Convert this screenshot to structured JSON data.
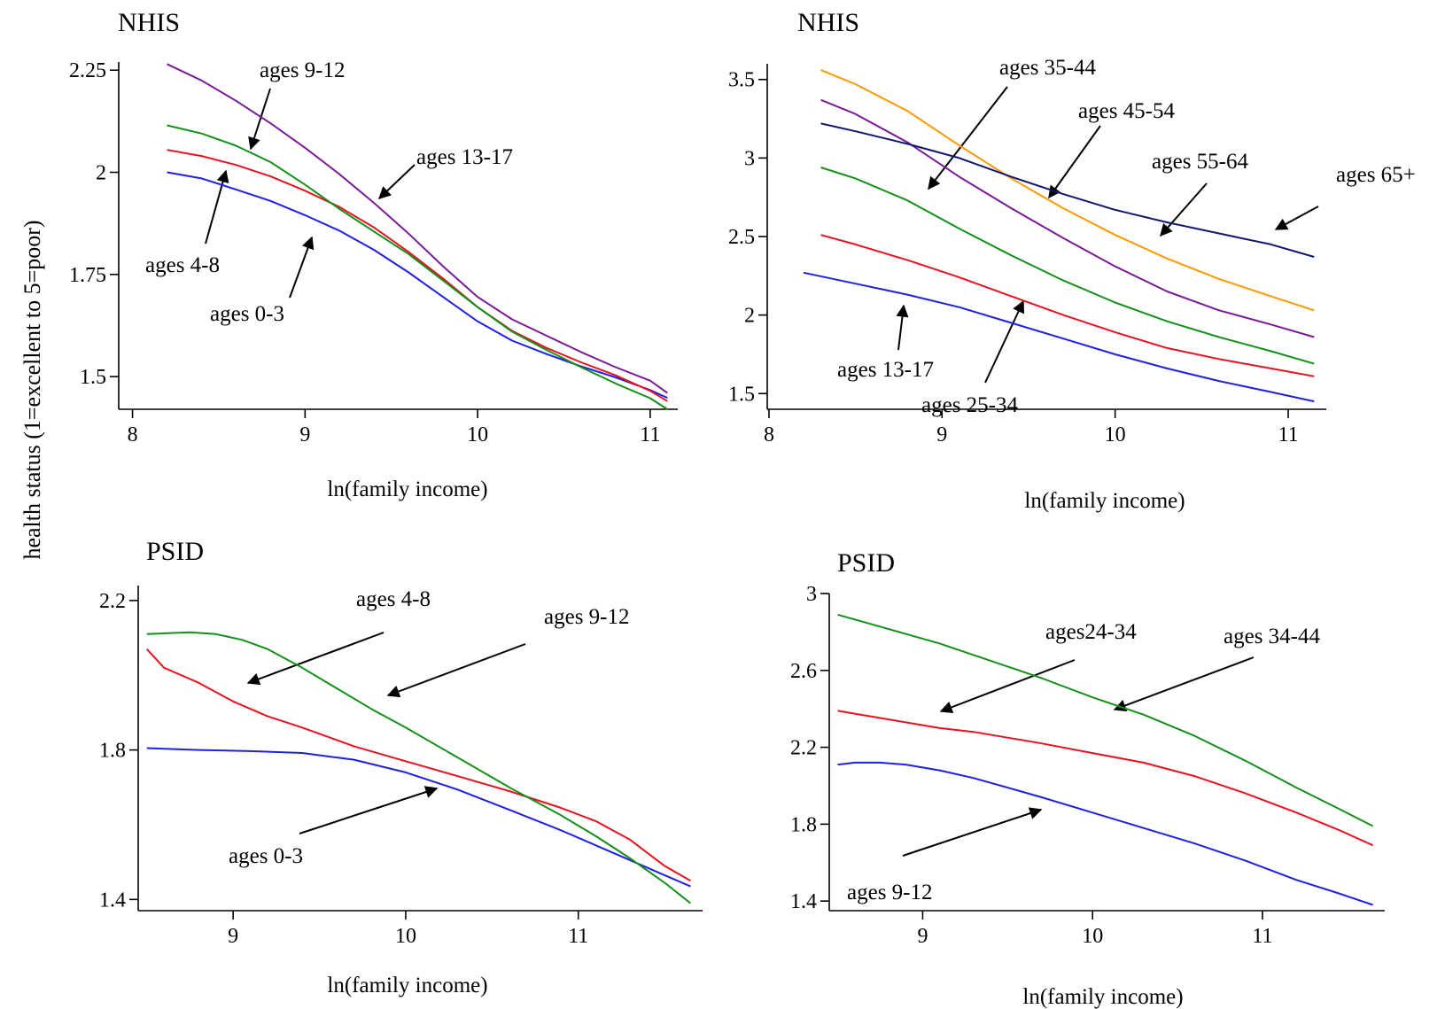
{
  "ylabel": "health status (1=excellent to 5=poor)",
  "colors": {
    "blue": "#1f1fe6",
    "red": "#e8121e",
    "green": "#14901a",
    "purple": "#7a1b96",
    "orange": "#ff9800",
    "navy": "#10186e"
  },
  "chart_data": [
    {
      "type": "line",
      "title": "NHIS",
      "xlabel": "ln(family income)",
      "xlim": [
        7.92,
        11.16
      ],
      "ylim": [
        1.42,
        2.27
      ],
      "xticks": [
        8,
        9,
        10,
        11
      ],
      "yticks": [
        1.5,
        1.75,
        2,
        2.25
      ],
      "ytick_labels": [
        "1.5",
        "1.75",
        "2",
        "2.25"
      ],
      "series": [
        {
          "name": "ages 0-3",
          "color": "blue",
          "x": [
            8.2,
            8.4,
            8.6,
            8.8,
            9.0,
            9.2,
            9.4,
            9.6,
            9.8,
            10.0,
            10.2,
            10.4,
            10.6,
            10.8,
            11.0,
            11.1
          ],
          "y": [
            2.0,
            1.985,
            1.958,
            1.93,
            1.895,
            1.857,
            1.81,
            1.755,
            1.695,
            1.635,
            1.588,
            1.555,
            1.525,
            1.498,
            1.467,
            1.448
          ]
        },
        {
          "name": "ages 4-8",
          "color": "red",
          "x": [
            8.2,
            8.4,
            8.6,
            8.8,
            9.0,
            9.2,
            9.4,
            9.6,
            9.8,
            10.0,
            10.2,
            10.4,
            10.6,
            10.8,
            11.0,
            11.1
          ],
          "y": [
            2.055,
            2.04,
            2.018,
            1.99,
            1.955,
            1.915,
            1.865,
            1.805,
            1.74,
            1.67,
            1.612,
            1.57,
            1.535,
            1.503,
            1.465,
            1.44
          ]
        },
        {
          "name": "ages 9-12",
          "color": "green",
          "x": [
            8.2,
            8.4,
            8.6,
            8.8,
            9.0,
            9.2,
            9.4,
            9.6,
            9.8,
            10.0,
            10.2,
            10.4,
            10.6,
            10.8,
            11.0,
            11.1
          ],
          "y": [
            2.115,
            2.095,
            2.065,
            2.025,
            1.97,
            1.91,
            1.855,
            1.8,
            1.735,
            1.67,
            1.61,
            1.565,
            1.523,
            1.483,
            1.447,
            1.42
          ]
        },
        {
          "name": "ages 13-17",
          "color": "purple",
          "x": [
            8.2,
            8.4,
            8.6,
            8.8,
            9.0,
            9.2,
            9.4,
            9.6,
            9.8,
            10.0,
            10.2,
            10.4,
            10.6,
            10.8,
            11.0,
            11.1
          ],
          "y": [
            2.265,
            2.225,
            2.175,
            2.12,
            2.06,
            1.995,
            1.925,
            1.85,
            1.77,
            1.695,
            1.64,
            1.6,
            1.56,
            1.523,
            1.49,
            1.46
          ]
        }
      ],
      "annotations": [
        "ages 9-12",
        "ages 13-17",
        "ages 4-8",
        "ages 0-3"
      ]
    },
    {
      "type": "line",
      "title": "NHIS",
      "xlabel": "ln(family income)",
      "xlim": [
        7.99,
        11.22
      ],
      "ylim": [
        1.4,
        3.6
      ],
      "xticks": [
        8,
        9,
        10,
        11
      ],
      "yticks": [
        1.5,
        2,
        2.5,
        3,
        3.5
      ],
      "ytick_labels": [
        "1.5",
        "2",
        "2.5",
        "3",
        "3.5"
      ],
      "series": [
        {
          "name": "ages 13-17",
          "color": "blue",
          "x": [
            8.2,
            8.5,
            8.8,
            9.1,
            9.4,
            9.7,
            10.0,
            10.3,
            10.6,
            10.9,
            11.15
          ],
          "y": [
            2.27,
            2.2,
            2.13,
            2.05,
            1.95,
            1.85,
            1.75,
            1.66,
            1.58,
            1.51,
            1.45
          ]
        },
        {
          "name": "ages 25-34",
          "color": "red",
          "x": [
            8.3,
            8.5,
            8.8,
            9.1,
            9.4,
            9.7,
            10.0,
            10.3,
            10.6,
            10.9,
            11.15
          ],
          "y": [
            2.51,
            2.45,
            2.35,
            2.24,
            2.12,
            2.0,
            1.89,
            1.79,
            1.72,
            1.66,
            1.61
          ]
        },
        {
          "name": "ages 35-44",
          "color": "green",
          "x": [
            8.3,
            8.5,
            8.8,
            9.1,
            9.4,
            9.7,
            10.0,
            10.3,
            10.6,
            10.9,
            11.15
          ],
          "y": [
            2.94,
            2.87,
            2.73,
            2.55,
            2.38,
            2.22,
            2.08,
            1.96,
            1.86,
            1.77,
            1.69
          ]
        },
        {
          "name": "ages 45-54",
          "color": "purple",
          "x": [
            8.3,
            8.5,
            8.8,
            9.1,
            9.4,
            9.7,
            10.0,
            10.3,
            10.6,
            10.9,
            11.15
          ],
          "y": [
            3.37,
            3.28,
            3.1,
            2.88,
            2.68,
            2.49,
            2.31,
            2.15,
            2.03,
            1.94,
            1.86
          ]
        },
        {
          "name": "ages 55-64",
          "color": "orange",
          "x": [
            8.3,
            8.5,
            8.8,
            9.1,
            9.4,
            9.7,
            10.0,
            10.3,
            10.6,
            10.9,
            11.15
          ],
          "y": [
            3.56,
            3.47,
            3.3,
            3.08,
            2.87,
            2.68,
            2.51,
            2.36,
            2.23,
            2.12,
            2.03
          ]
        },
        {
          "name": "ages 65+",
          "color": "navy",
          "x": [
            8.3,
            8.5,
            8.8,
            9.1,
            9.4,
            9.7,
            10.0,
            10.3,
            10.6,
            10.9,
            11.15
          ],
          "y": [
            3.22,
            3.17,
            3.09,
            3.0,
            2.88,
            2.77,
            2.67,
            2.59,
            2.52,
            2.45,
            2.37
          ]
        }
      ],
      "annotations": [
        "ages 35-44",
        "ages 45-54",
        "ages 55-64",
        "ages 65+",
        "ages 13-17",
        "ages 25-34"
      ]
    },
    {
      "type": "line",
      "title": "PSID",
      "xlabel": "ln(family income)",
      "xlim": [
        8.45,
        11.72
      ],
      "ylim": [
        1.37,
        2.24
      ],
      "xticks": [
        9,
        10,
        11
      ],
      "yticks": [
        1.4,
        1.8,
        2.2
      ],
      "ytick_labels": [
        "1.4",
        "1.8",
        "2.2"
      ],
      "series": [
        {
          "name": "ages 0-3",
          "color": "blue",
          "x": [
            8.5,
            8.8,
            9.1,
            9.4,
            9.7,
            10.0,
            10.3,
            10.6,
            10.9,
            11.2,
            11.5,
            11.65
          ],
          "y": [
            1.805,
            1.8,
            1.797,
            1.792,
            1.774,
            1.74,
            1.694,
            1.64,
            1.585,
            1.525,
            1.465,
            1.435
          ]
        },
        {
          "name": "ages 4-8",
          "color": "red",
          "x": [
            8.5,
            8.6,
            8.8,
            9.0,
            9.2,
            9.4,
            9.7,
            10.0,
            10.3,
            10.6,
            10.9,
            11.1,
            11.3,
            11.5,
            11.65
          ],
          "y": [
            2.07,
            2.02,
            1.98,
            1.93,
            1.89,
            1.86,
            1.81,
            1.77,
            1.73,
            1.69,
            1.645,
            1.61,
            1.56,
            1.49,
            1.45
          ]
        },
        {
          "name": "ages 9-12",
          "color": "green",
          "x": [
            8.5,
            8.75,
            8.9,
            9.05,
            9.2,
            9.4,
            9.6,
            9.8,
            10.0,
            10.3,
            10.6,
            10.9,
            11.1,
            11.3,
            11.5,
            11.65
          ],
          "y": [
            2.11,
            2.115,
            2.11,
            2.095,
            2.07,
            2.02,
            1.965,
            1.91,
            1.86,
            1.78,
            1.7,
            1.625,
            1.57,
            1.51,
            1.445,
            1.39
          ]
        }
      ],
      "annotations": [
        "ages 4-8",
        "ages 9-12",
        "ages 0-3"
      ]
    },
    {
      "type": "line",
      "title": "PSID",
      "xlabel": "ln(family income)",
      "xlim": [
        8.45,
        11.72
      ],
      "ylim": [
        1.35,
        3.0
      ],
      "xticks": [
        9,
        10,
        11
      ],
      "yticks": [
        1.4,
        1.8,
        2.2,
        2.6,
        3
      ],
      "ytick_labels": [
        "1.4",
        "1.8",
        "2.2",
        "2.6",
        "3"
      ],
      "series": [
        {
          "name": "ages 9-12",
          "color": "blue",
          "x": [
            8.5,
            8.6,
            8.75,
            8.9,
            9.1,
            9.3,
            9.5,
            9.7,
            10.0,
            10.3,
            10.6,
            10.9,
            11.2,
            11.45,
            11.65
          ],
          "y": [
            2.11,
            2.12,
            2.12,
            2.11,
            2.08,
            2.04,
            1.99,
            1.94,
            1.86,
            1.78,
            1.7,
            1.61,
            1.51,
            1.44,
            1.38
          ]
        },
        {
          "name": "ages24-34",
          "color": "red",
          "x": [
            8.5,
            8.7,
            8.9,
            9.1,
            9.3,
            9.5,
            9.7,
            10.0,
            10.3,
            10.6,
            10.9,
            11.2,
            11.45,
            11.65
          ],
          "y": [
            2.39,
            2.36,
            2.33,
            2.3,
            2.28,
            2.25,
            2.22,
            2.17,
            2.12,
            2.05,
            1.96,
            1.86,
            1.77,
            1.69
          ]
        },
        {
          "name": "ages 34-44",
          "color": "green",
          "x": [
            8.5,
            8.7,
            8.9,
            9.1,
            9.3,
            9.5,
            9.7,
            10.0,
            10.3,
            10.6,
            10.9,
            11.2,
            11.45,
            11.65
          ],
          "y": [
            2.89,
            2.84,
            2.79,
            2.74,
            2.68,
            2.62,
            2.56,
            2.46,
            2.37,
            2.26,
            2.13,
            1.99,
            1.88,
            1.79
          ]
        }
      ],
      "annotations": [
        "ages24-34",
        "ages 34-44",
        "ages 9-12"
      ]
    }
  ]
}
